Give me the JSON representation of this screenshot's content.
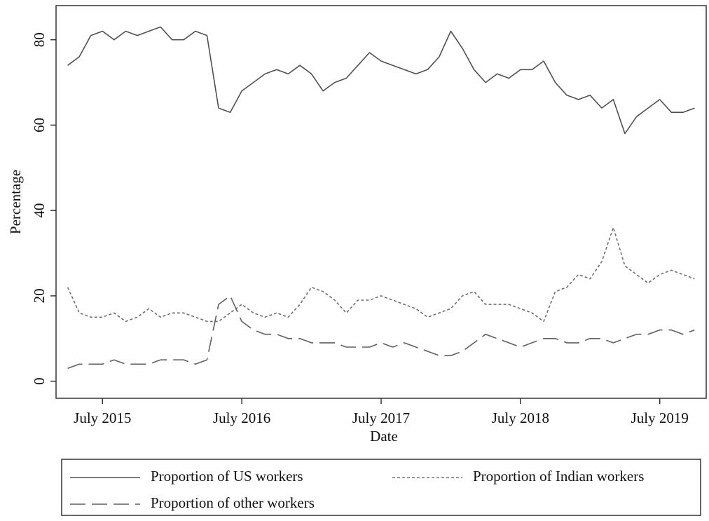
{
  "chart_data": {
    "type": "line",
    "x_axis_label": "Date",
    "y_axis_label": "Percentage",
    "x": [
      "2015-04",
      "2015-05",
      "2015-06",
      "2015-07",
      "2015-08",
      "2015-09",
      "2015-10",
      "2015-11",
      "2015-12",
      "2016-01",
      "2016-02",
      "2016-03",
      "2016-04",
      "2016-05",
      "2016-06",
      "2016-07",
      "2016-08",
      "2016-09",
      "2016-10",
      "2016-11",
      "2016-12",
      "2017-01",
      "2017-02",
      "2017-03",
      "2017-04",
      "2017-05",
      "2017-06",
      "2017-07",
      "2017-08",
      "2017-09",
      "2017-10",
      "2017-11",
      "2017-12",
      "2018-01",
      "2018-02",
      "2018-03",
      "2018-04",
      "2018-05",
      "2018-06",
      "2018-07",
      "2018-08",
      "2018-09",
      "2018-10",
      "2018-11",
      "2018-12",
      "2019-01",
      "2019-02",
      "2019-03",
      "2019-04",
      "2019-05",
      "2019-06",
      "2019-07",
      "2019-08",
      "2019-09",
      "2019-10"
    ],
    "series": [
      {
        "name": "Proportion of US workers",
        "color": "#505050",
        "line_style": "solid",
        "values": [
          74,
          76,
          81,
          82,
          80,
          82,
          81,
          82,
          83,
          80,
          80,
          82,
          81,
          64,
          63,
          68,
          70,
          72,
          73,
          72,
          74,
          72,
          68,
          70,
          71,
          74,
          77,
          75,
          74,
          73,
          72,
          73,
          76,
          82,
          78,
          73,
          70,
          72,
          71,
          73,
          73,
          75,
          70,
          67,
          66,
          67,
          64,
          66,
          58,
          62,
          64,
          66,
          63,
          63,
          64
        ]
      },
      {
        "name": "Proportion of Indian workers",
        "color": "#707070",
        "line_style": "dotted",
        "values": [
          22,
          16,
          15,
          15,
          16,
          14,
          15,
          17,
          15,
          16,
          16,
          15,
          14,
          14,
          16,
          18,
          16,
          15,
          16,
          15,
          18,
          22,
          21,
          19,
          16,
          19,
          19,
          20,
          19,
          18,
          17,
          15,
          16,
          17,
          20,
          21,
          18,
          18,
          18,
          17,
          16,
          14,
          21,
          22,
          25,
          24,
          28,
          36,
          27,
          25,
          23,
          25,
          26,
          25,
          24
        ]
      },
      {
        "name": "Proportion of other workers",
        "color": "#606060",
        "line_style": "dashed",
        "values": [
          3,
          4,
          4,
          4,
          5,
          4,
          4,
          4,
          5,
          5,
          5,
          4,
          5,
          18,
          20,
          14,
          12,
          11,
          11,
          10,
          10,
          9,
          9,
          9,
          8,
          8,
          8,
          9,
          8,
          9,
          8,
          7,
          6,
          6,
          7,
          9,
          11,
          10,
          9,
          8,
          9,
          10,
          10,
          9,
          9,
          10,
          10,
          9,
          10,
          11,
          11,
          12,
          12,
          11,
          12
        ]
      }
    ],
    "xlim": [
      "2015-03",
      "2019-11"
    ],
    "xticks": [
      {
        "value": "2015-07",
        "label": "July 2015"
      },
      {
        "value": "2016-07",
        "label": "July 2016"
      },
      {
        "value": "2017-07",
        "label": "July 2017"
      },
      {
        "value": "2018-07",
        "label": "July 2018"
      },
      {
        "value": "2019-07",
        "label": "July 2019"
      }
    ],
    "ylim": [
      -4,
      88
    ],
    "yticks": [
      0,
      20,
      40,
      60,
      80
    ],
    "grid": false,
    "legend": "bottom"
  }
}
